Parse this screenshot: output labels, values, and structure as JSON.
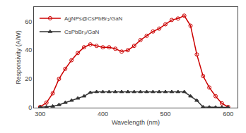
{
  "chart_data": {
    "type": "line",
    "xlabel": "Wavelength (nm)",
    "ylabel": "Responsivity (A/W)",
    "xlim": [
      290,
      615
    ],
    "ylim": [
      0,
      70
    ],
    "xticks": [
      300,
      400,
      500,
      600
    ],
    "yticks": [
      0,
      20,
      40,
      60
    ],
    "grid": false,
    "legend": "upper left",
    "series": [
      {
        "name": "AgNPs@CsPbBr₃/GaN",
        "color": "#cc0000",
        "marker": "circle-open",
        "x": [
          300,
          310,
          320,
          330,
          340,
          350,
          360,
          370,
          380,
          390,
          400,
          410,
          420,
          430,
          440,
          450,
          460,
          470,
          480,
          490,
          500,
          510,
          520,
          530,
          540,
          550,
          560,
          570,
          580,
          590,
          600
        ],
        "values": [
          0.5,
          3.5,
          10,
          20,
          27,
          33,
          38,
          42,
          44,
          43,
          42,
          42,
          41,
          39,
          40,
          43,
          47,
          50,
          53,
          55,
          58,
          61,
          62,
          64,
          57,
          37,
          22,
          14,
          8,
          3,
          0.5
        ]
      },
      {
        "name": "CsPbBr₃/GaN",
        "color": "#333333",
        "marker": "triangle-up",
        "x": [
          300,
          310,
          320,
          330,
          340,
          350,
          360,
          370,
          380,
          390,
          400,
          410,
          420,
          430,
          440,
          450,
          460,
          470,
          480,
          490,
          500,
          510,
          520,
          530,
          540,
          550,
          560,
          570,
          580,
          590,
          600
        ],
        "values": [
          0.3,
          0.5,
          1.0,
          2.0,
          3.5,
          5.0,
          6.5,
          8.0,
          10.5,
          11,
          11,
          11,
          11,
          11,
          11,
          11,
          11,
          11,
          11,
          11,
          11,
          11,
          11,
          11,
          8,
          5,
          0.5,
          0.3,
          0.2,
          0.2,
          0.2
        ]
      }
    ]
  }
}
